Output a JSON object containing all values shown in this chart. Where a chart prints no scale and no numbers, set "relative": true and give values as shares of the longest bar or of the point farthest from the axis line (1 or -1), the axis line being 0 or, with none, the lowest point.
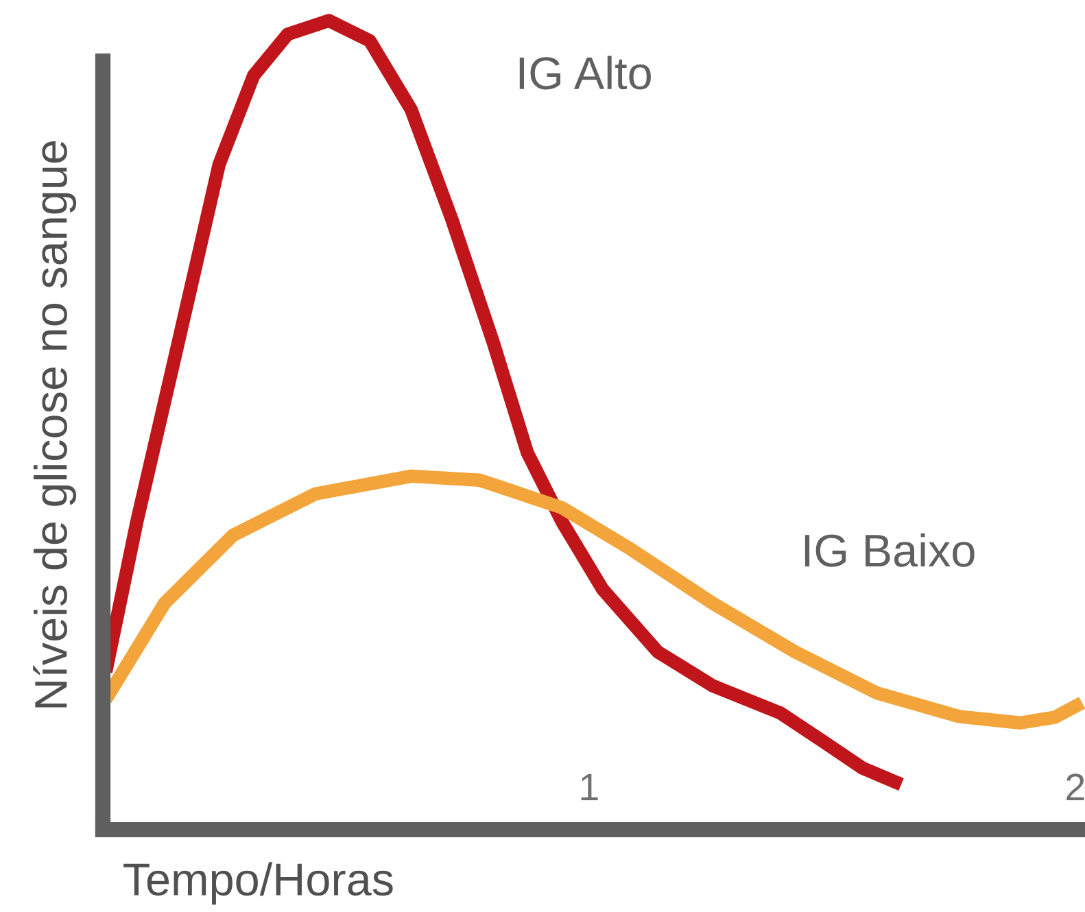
{
  "chart_data": {
    "type": "line",
    "relative": true,
    "xlabel": "Tempo/Horas",
    "ylabel": "Níveis de glicose no sangue",
    "xlim": [
      0,
      2.02
    ],
    "xticks": [
      1,
      2
    ],
    "grid": false,
    "legend": false,
    "marker": "none",
    "line_style": "solid",
    "series": [
      {
        "name": "IG Alto",
        "color": "#c0161b",
        "x": [
          0.006,
          0.07,
          0.155,
          0.239,
          0.31,
          0.38,
          0.465,
          0.549,
          0.634,
          0.718,
          0.803,
          0.873,
          0.944,
          1.028,
          1.141,
          1.254,
          1.394,
          1.479,
          1.563,
          1.642
        ],
        "values": [
          0.195,
          0.381,
          0.602,
          0.822,
          0.932,
          0.983,
          1.0,
          0.975,
          0.89,
          0.754,
          0.602,
          0.466,
          0.381,
          0.297,
          0.22,
          0.178,
          0.144,
          0.11,
          0.076,
          0.056
        ]
      },
      {
        "name": "IG Baixo",
        "color": "#f3a43a",
        "x": [
          0.006,
          0.127,
          0.268,
          0.437,
          0.634,
          0.775,
          0.944,
          1.085,
          1.254,
          1.423,
          1.592,
          1.761,
          1.887,
          1.958,
          2.014
        ],
        "values": [
          0.161,
          0.28,
          0.364,
          0.415,
          0.437,
          0.432,
          0.398,
          0.347,
          0.28,
          0.22,
          0.169,
          0.14,
          0.132,
          0.139,
          0.157
        ]
      }
    ]
  }
}
